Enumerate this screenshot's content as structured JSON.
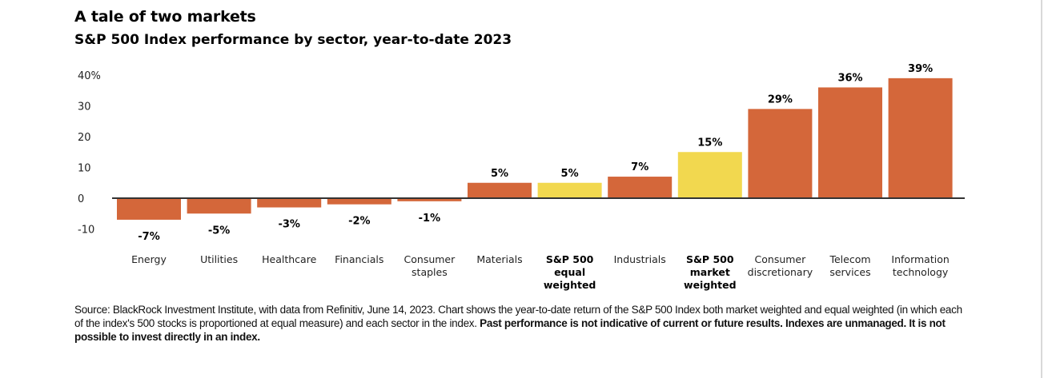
{
  "header": {
    "title": "A tale of two markets",
    "subtitle": "S&P 500 Index performance by sector, year-to-date 2023"
  },
  "colors": {
    "sector_bar": "#d4673a",
    "index_bar": "#f2d84f",
    "axis": "#333333"
  },
  "chart_data": {
    "type": "bar",
    "title": "",
    "xlabel": "",
    "ylabel": "",
    "ylim": [
      -10,
      40
    ],
    "yticks": [
      -10,
      0,
      10,
      20,
      30,
      40
    ],
    "ytick_labels": [
      "-10",
      "0",
      "10",
      "20",
      "30",
      "40%"
    ],
    "categories": [
      [
        "Energy"
      ],
      [
        "Utilities"
      ],
      [
        "Healthcare"
      ],
      [
        "Financials"
      ],
      [
        "Consumer",
        "staples"
      ],
      [
        "Materials"
      ],
      [
        "S&P 500",
        "equal",
        "weighted"
      ],
      [
        "Industrials"
      ],
      [
        "S&P 500",
        "market",
        "weighted"
      ],
      [
        "Consumer",
        "discretionary"
      ],
      [
        "Telecom",
        "services"
      ],
      [
        "Information",
        "technology"
      ]
    ],
    "values": [
      -7,
      -5,
      -3,
      -2,
      -1,
      5,
      5,
      7,
      15,
      29,
      36,
      39
    ],
    "value_labels": [
      "-7%",
      "-5%",
      "-3%",
      "-2%",
      "-1%",
      "5%",
      "5%",
      "7%",
      "15%",
      "29%",
      "36%",
      "39%"
    ],
    "highlighted": [
      false,
      false,
      false,
      false,
      false,
      false,
      true,
      false,
      true,
      false,
      false,
      false
    ],
    "grid": false,
    "legend": "none"
  },
  "footer": {
    "source_text": "Source: BlackRock Investment Institute, with data from Refinitiv, June 14, 2023. Chart shows the year-to-date return of the S&P 500 Index both market weighted and equal weighted (in which each of the index's 500 stocks is proportioned at equal measure) and each sector in the index.",
    "disclaimer": "Past performance is not indicative of current or future results. Indexes are unmanaged. It is not possible to invest directly in an index."
  }
}
